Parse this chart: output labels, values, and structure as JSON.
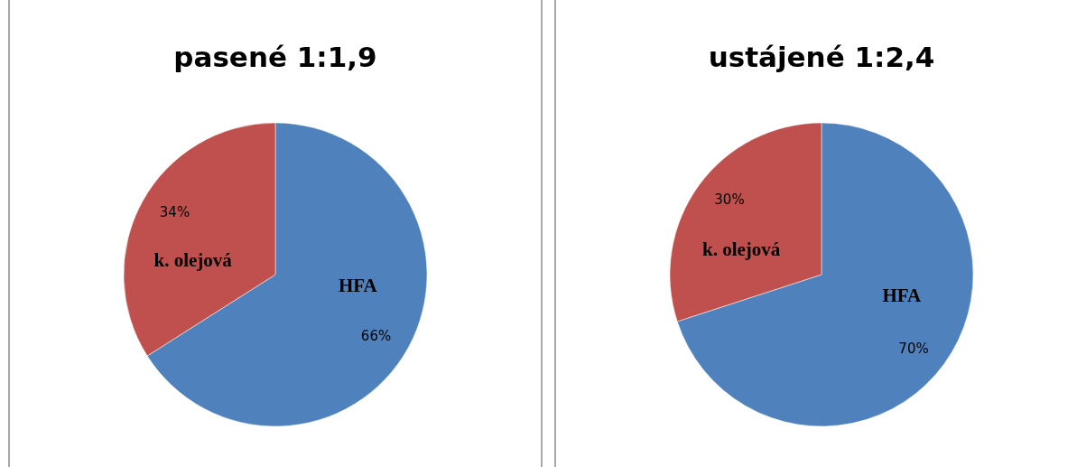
{
  "chart_data": [
    {
      "type": "pie",
      "title": "pasené 1:1,9",
      "categories": [
        "HFA",
        "k. olejová"
      ],
      "values": [
        66,
        34
      ],
      "colors": [
        "#4f81bd",
        "#c0504d"
      ],
      "value_labels": [
        "66%",
        "34%"
      ]
    },
    {
      "type": "pie",
      "title": "ustájené 1:2,4",
      "categories": [
        "HFA",
        "k. olejová"
      ],
      "values": [
        70,
        30
      ],
      "colors": [
        "#4f81bd",
        "#c0504d"
      ],
      "value_labels": [
        "70%",
        "30%"
      ]
    }
  ]
}
